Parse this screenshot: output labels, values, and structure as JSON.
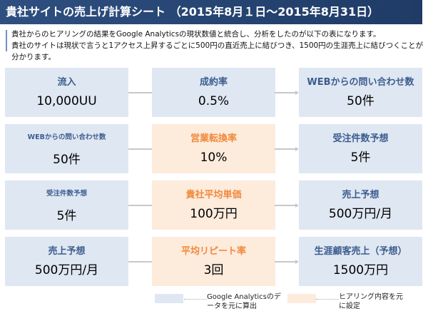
{
  "title": "貴社サイトの売上げ計算シート （2015年8月１日～2015年8月31日）",
  "description": [
    "貴社からのヒアリングの結果をGoogle Analyticsの現状数値と統合し、分析をしたのが以下の表になります。",
    "貴社のサイトは現状で言うと1アクセス上昇するごとに500円の直近売上に結びつき、1500円の生涯売上に結びつくことが分かります。"
  ],
  "rows": [
    [
      {
        "label": "流入",
        "value": "10,000UU",
        "type": "ga"
      },
      {
        "label": "成約率",
        "value": "0.5%",
        "type": "ga"
      },
      {
        "label": "WEBからの問い合わせ数",
        "value": "50件",
        "type": "ga"
      }
    ],
    [
      {
        "label": "WEBからの問い合わせ数",
        "value": "50件",
        "type": "ga"
      },
      {
        "label": "営業転換率",
        "value": "10%",
        "type": "hearing"
      },
      {
        "label": "受注件数予想",
        "value": "5件",
        "type": "ga"
      }
    ],
    [
      {
        "label": "受注件数予想",
        "value": "5件",
        "type": "ga"
      },
      {
        "label": "貴社平均単価",
        "value": "100万円",
        "type": "hearing"
      },
      {
        "label": "売上予想",
        "value": "500万円/月",
        "type": "ga"
      }
    ],
    [
      {
        "label": "売上予想",
        "value": "500万円/月",
        "type": "ga"
      },
      {
        "label": "平均リピート率",
        "value": "3回",
        "type": "hearing"
      },
      {
        "label": "生涯顧客売上（予想）",
        "value": "1500万円",
        "type": "ga"
      }
    ]
  ],
  "legend": {
    "ga": "Google Analyticsのデータを元に算出",
    "hearing": "ヒアリング内容を元に設定"
  },
  "colors": {
    "ga": "#dfe7f2",
    "hearing": "#fdebdc",
    "header": "#2e4f80",
    "accent": "#f08a3c"
  }
}
